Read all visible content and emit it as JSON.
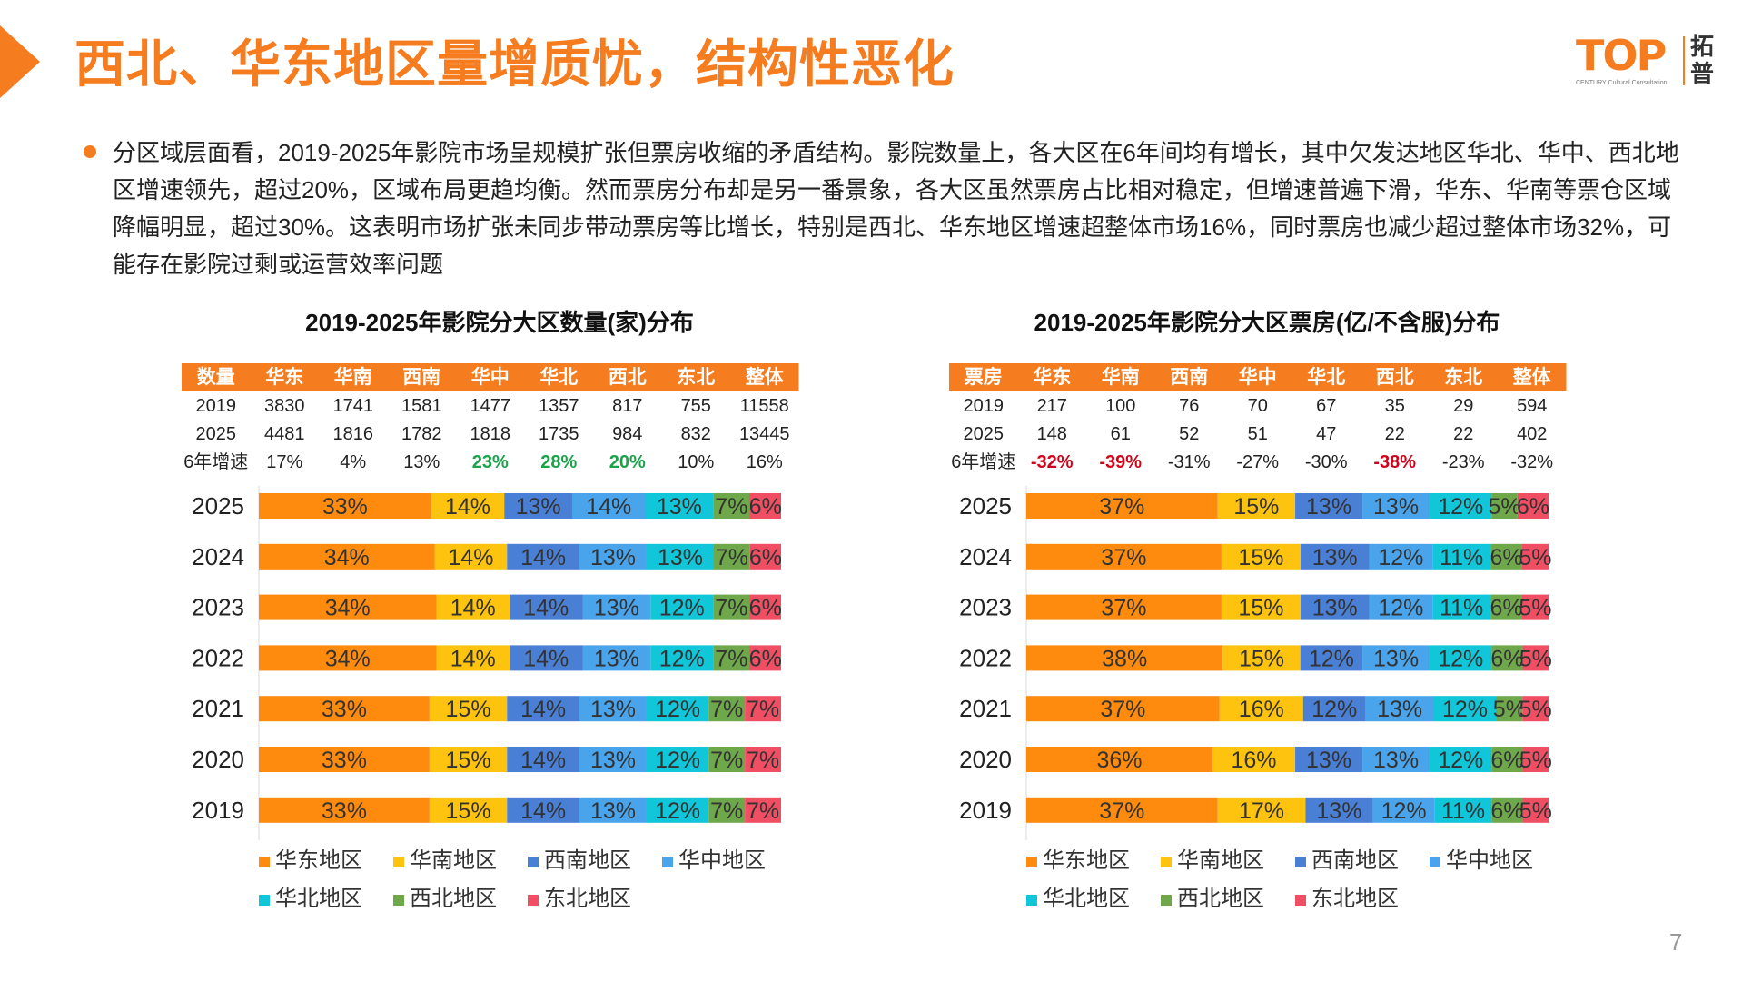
{
  "header": {
    "title": "西北、华东地区量增质忧，结构性恶化",
    "logo_text": "TOP",
    "logo_cn": "拓普",
    "logo_sub": "CENTURY  Cultural Consultation"
  },
  "bullet": {
    "text": "分区域层面看，2019-2025年影院市场呈规模扩张但票房收缩的矛盾结构。影院数量上，各大区在6年间均有增长，其中欠发达地区华北、华中、西北地区增速领先，超过20%，区域布局更趋均衡。然而票房分布却是另一番景象，各大区虽然票房占比相对稳定，但增速普遍下滑，华东、华南等票仓区域降幅明显，超过30%。这表明市场扩张未同步带动票房等比增长，特别是西北、华东地区增速超整体市场16%，同时票房也减少超过整体市场32%，可能存在影院过剩或运营效率问题"
  },
  "page_number": "7",
  "colors": {
    "accent": "#f57c1f",
    "series": [
      "#fe8a0e",
      "#fec30e",
      "#4a7fd6",
      "#4aa4ec",
      "#10c6d8",
      "#6ea84a",
      "#f04e63"
    ],
    "positive": "#1aa34a",
    "negative": "#d0021b"
  },
  "chart_data": [
    {
      "type": "table+stacked-bar",
      "title": "2019-2025年影院分大区数量(家)分布",
      "table": {
        "header": [
          "数量",
          "华东",
          "华南",
          "西南",
          "华中",
          "华北",
          "西北",
          "东北",
          "整体"
        ],
        "rows": [
          {
            "label": "2019",
            "cells": [
              "3830",
              "1741",
              "1581",
              "1477",
              "1357",
              "817",
              "755",
              "11558"
            ]
          },
          {
            "label": "2025",
            "cells": [
              "4481",
              "1816",
              "1782",
              "1818",
              "1735",
              "984",
              "832",
              "13445"
            ]
          },
          {
            "label": "6年增速",
            "cells": [
              "17%",
              "4%",
              "13%",
              "23%",
              "28%",
              "20%",
              "10%",
              "16%"
            ],
            "highlight": [
              "",
              "",
              "",
              "positive",
              "positive",
              "positive",
              "",
              ""
            ]
          }
        ]
      },
      "categories": [
        "2025",
        "2024",
        "2023",
        "2022",
        "2021",
        "2020",
        "2019"
      ],
      "series": [
        {
          "name": "华东地区",
          "values": [
            33,
            34,
            34,
            34,
            33,
            33,
            33
          ]
        },
        {
          "name": "华南地区",
          "values": [
            14,
            14,
            14,
            14,
            15,
            15,
            15
          ]
        },
        {
          "name": "西南地区",
          "values": [
            13,
            14,
            14,
            14,
            14,
            14,
            14
          ]
        },
        {
          "name": "华中地区",
          "values": [
            14,
            13,
            13,
            13,
            13,
            13,
            13
          ]
        },
        {
          "name": "华北地区",
          "values": [
            13,
            13,
            12,
            12,
            12,
            12,
            12
          ]
        },
        {
          "name": "西北地区",
          "values": [
            7,
            7,
            7,
            7,
            7,
            7,
            7
          ]
        },
        {
          "name": "东北地区",
          "values": [
            6,
            6,
            6,
            6,
            7,
            7,
            7
          ]
        }
      ],
      "legend_position": "bottom"
    },
    {
      "type": "table+stacked-bar",
      "title": "2019-2025年影院分大区票房(亿/不含服)分布",
      "table": {
        "header": [
          "票房",
          "华东",
          "华南",
          "西南",
          "华中",
          "华北",
          "西北",
          "东北",
          "整体"
        ],
        "rows": [
          {
            "label": "2019",
            "cells": [
              "217",
              "100",
              "76",
              "70",
              "67",
              "35",
              "29",
              "594"
            ]
          },
          {
            "label": "2025",
            "cells": [
              "148",
              "61",
              "52",
              "51",
              "47",
              "22",
              "22",
              "402"
            ]
          },
          {
            "label": "6年增速",
            "cells": [
              "-32%",
              "-39%",
              "-31%",
              "-27%",
              "-30%",
              "-38%",
              "-23%",
              "-32%"
            ],
            "highlight": [
              "negative",
              "negative",
              "",
              "",
              "",
              "negative",
              "",
              ""
            ]
          }
        ]
      },
      "categories": [
        "2025",
        "2024",
        "2023",
        "2022",
        "2021",
        "2020",
        "2019"
      ],
      "series": [
        {
          "name": "华东地区",
          "values": [
            37,
            37,
            37,
            38,
            37,
            36,
            37
          ]
        },
        {
          "name": "华南地区",
          "values": [
            15,
            15,
            15,
            15,
            16,
            16,
            17
          ]
        },
        {
          "name": "西南地区",
          "values": [
            13,
            13,
            13,
            12,
            12,
            13,
            13
          ]
        },
        {
          "name": "华中地区",
          "values": [
            13,
            12,
            12,
            13,
            13,
            13,
            12
          ]
        },
        {
          "name": "华北地区",
          "values": [
            12,
            11,
            11,
            12,
            12,
            12,
            11
          ]
        },
        {
          "name": "西北地区",
          "values": [
            5,
            6,
            6,
            6,
            5,
            6,
            6
          ]
        },
        {
          "name": "东北地区",
          "values": [
            6,
            5,
            5,
            5,
            5,
            5,
            5
          ]
        }
      ],
      "legend_position": "bottom"
    }
  ]
}
